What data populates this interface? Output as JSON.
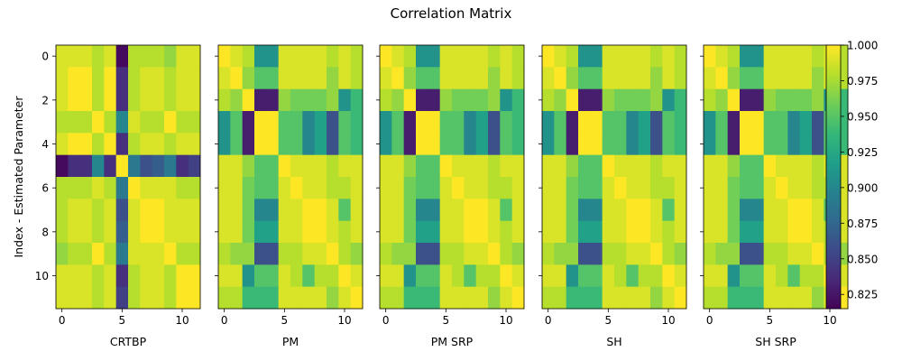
{
  "title": "Correlation Matrix",
  "ylabel": "Index - Estimated Parameter",
  "colorbar": {
    "min": 0.815,
    "max": 1.0,
    "ticks": [
      "0.825",
      "0.850",
      "0.875",
      "0.900",
      "0.925",
      "0.950",
      "0.975",
      "1.000"
    ],
    "colormap": "viridis"
  },
  "chart_data": {
    "type": "heatmap",
    "title": "Correlation Matrix",
    "ylabel": "Index - Estimated Parameter",
    "x_ticks": [
      "0",
      "5",
      "10"
    ],
    "y_ticks": [
      "0",
      "2",
      "4",
      "6",
      "8",
      "10"
    ],
    "grid": false,
    "panels": [
      {
        "name": "CRTBP",
        "matrix": [
          [
            0.99,
            0.99,
            0.99,
            0.98,
            0.99,
            0.82,
            0.98,
            0.98,
            0.98,
            0.97,
            0.99,
            0.99
          ],
          [
            0.99,
            1.0,
            1.0,
            0.98,
            1.0,
            0.84,
            0.98,
            0.99,
            0.99,
            0.98,
            0.99,
            0.99
          ],
          [
            0.99,
            1.0,
            1.0,
            0.98,
            1.0,
            0.84,
            0.98,
            0.99,
            0.99,
            0.98,
            0.99,
            0.99
          ],
          [
            0.98,
            0.98,
            0.98,
            1.0,
            0.98,
            0.9,
            0.99,
            0.98,
            0.98,
            1.0,
            0.98,
            0.98
          ],
          [
            0.99,
            1.0,
            1.0,
            0.98,
            1.0,
            0.84,
            0.98,
            0.99,
            0.99,
            0.98,
            0.99,
            0.99
          ],
          [
            0.82,
            0.84,
            0.84,
            0.9,
            0.84,
            1.0,
            0.89,
            0.86,
            0.87,
            0.89,
            0.84,
            0.85
          ],
          [
            0.98,
            0.98,
            0.98,
            0.99,
            0.98,
            0.89,
            1.0,
            0.99,
            0.99,
            0.99,
            0.98,
            0.98
          ],
          [
            0.98,
            0.99,
            0.99,
            0.98,
            0.99,
            0.86,
            0.99,
            1.0,
            1.0,
            0.99,
            0.99,
            0.99
          ],
          [
            0.98,
            0.99,
            0.99,
            0.98,
            0.99,
            0.87,
            0.99,
            1.0,
            1.0,
            0.99,
            0.99,
            0.99
          ],
          [
            0.97,
            0.98,
            0.98,
            1.0,
            0.98,
            0.89,
            0.99,
            0.99,
            0.99,
            1.0,
            0.98,
            0.98
          ],
          [
            0.99,
            0.99,
            0.99,
            0.98,
            0.99,
            0.84,
            0.98,
            0.99,
            0.99,
            0.98,
            1.0,
            1.0
          ],
          [
            0.99,
            0.99,
            0.99,
            0.98,
            0.99,
            0.85,
            0.98,
            0.99,
            0.99,
            0.98,
            1.0,
            1.0
          ]
        ]
      },
      {
        "name": "PM",
        "matrix": [
          [
            1.0,
            0.99,
            0.98,
            0.91,
            0.91,
            0.99,
            0.99,
            0.99,
            0.99,
            0.98,
            0.99,
            0.98
          ],
          [
            0.99,
            1.0,
            0.97,
            0.95,
            0.95,
            0.99,
            0.99,
            0.99,
            0.99,
            0.97,
            0.99,
            0.98
          ],
          [
            0.98,
            0.97,
            1.0,
            0.83,
            0.83,
            0.97,
            0.96,
            0.96,
            0.96,
            0.97,
            0.91,
            0.94
          ],
          [
            0.91,
            0.95,
            0.83,
            1.0,
            1.0,
            0.95,
            0.95,
            0.9,
            0.92,
            0.86,
            0.95,
            0.94
          ],
          [
            0.91,
            0.95,
            0.83,
            1.0,
            1.0,
            0.95,
            0.95,
            0.9,
            0.92,
            0.86,
            0.95,
            0.94
          ],
          [
            0.99,
            0.99,
            0.97,
            0.95,
            0.95,
            1.0,
            0.99,
            0.99,
            0.99,
            0.98,
            0.99,
            0.99
          ],
          [
            0.99,
            0.99,
            0.96,
            0.95,
            0.95,
            0.99,
            1.0,
            0.99,
            0.99,
            0.98,
            0.98,
            0.99
          ],
          [
            0.99,
            0.99,
            0.96,
            0.9,
            0.9,
            0.99,
            0.99,
            1.0,
            1.0,
            0.99,
            0.95,
            0.99
          ],
          [
            0.99,
            0.99,
            0.96,
            0.92,
            0.92,
            0.99,
            0.99,
            1.0,
            1.0,
            0.99,
            0.98,
            0.99
          ],
          [
            0.98,
            0.97,
            0.97,
            0.86,
            0.86,
            0.98,
            0.98,
            0.99,
            0.99,
            1.0,
            0.98,
            0.97
          ],
          [
            0.99,
            0.99,
            0.91,
            0.95,
            0.95,
            0.99,
            0.98,
            0.95,
            0.98,
            0.98,
            1.0,
            0.99
          ],
          [
            0.98,
            0.98,
            0.94,
            0.94,
            0.94,
            0.99,
            0.99,
            0.99,
            0.99,
            0.97,
            0.99,
            1.0
          ]
        ]
      },
      {
        "name": "PM SRP",
        "matrix": [
          [
            1.0,
            0.99,
            0.98,
            0.91,
            0.91,
            0.99,
            0.99,
            0.99,
            0.99,
            0.98,
            0.99,
            0.98
          ],
          [
            0.99,
            1.0,
            0.97,
            0.95,
            0.95,
            0.99,
            0.99,
            0.99,
            0.99,
            0.97,
            0.99,
            0.98
          ],
          [
            0.98,
            0.97,
            1.0,
            0.83,
            0.83,
            0.97,
            0.96,
            0.96,
            0.96,
            0.97,
            0.91,
            0.94
          ],
          [
            0.91,
            0.95,
            0.83,
            1.0,
            1.0,
            0.95,
            0.95,
            0.9,
            0.92,
            0.86,
            0.95,
            0.94
          ],
          [
            0.91,
            0.95,
            0.83,
            1.0,
            1.0,
            0.95,
            0.95,
            0.9,
            0.92,
            0.86,
            0.95,
            0.94
          ],
          [
            0.99,
            0.99,
            0.97,
            0.95,
            0.95,
            1.0,
            0.99,
            0.99,
            0.99,
            0.98,
            0.99,
            0.99
          ],
          [
            0.99,
            0.99,
            0.96,
            0.95,
            0.95,
            0.99,
            1.0,
            0.99,
            0.99,
            0.98,
            0.98,
            0.99
          ],
          [
            0.99,
            0.99,
            0.96,
            0.9,
            0.9,
            0.99,
            0.99,
            1.0,
            1.0,
            0.99,
            0.95,
            0.99
          ],
          [
            0.99,
            0.99,
            0.96,
            0.92,
            0.92,
            0.99,
            0.99,
            1.0,
            1.0,
            0.99,
            0.98,
            0.99
          ],
          [
            0.98,
            0.97,
            0.97,
            0.86,
            0.86,
            0.98,
            0.98,
            0.99,
            0.99,
            1.0,
            0.98,
            0.97
          ],
          [
            0.99,
            0.99,
            0.91,
            0.95,
            0.95,
            0.99,
            0.98,
            0.95,
            0.98,
            0.98,
            1.0,
            0.99
          ],
          [
            0.98,
            0.98,
            0.94,
            0.94,
            0.94,
            0.99,
            0.99,
            0.99,
            0.99,
            0.97,
            0.99,
            1.0
          ]
        ]
      },
      {
        "name": "SH",
        "matrix": [
          [
            1.0,
            0.99,
            0.98,
            0.91,
            0.91,
            0.99,
            0.99,
            0.99,
            0.99,
            0.98,
            0.99,
            0.98
          ],
          [
            0.99,
            1.0,
            0.97,
            0.95,
            0.95,
            0.99,
            0.99,
            0.99,
            0.99,
            0.97,
            0.99,
            0.98
          ],
          [
            0.98,
            0.97,
            1.0,
            0.83,
            0.83,
            0.97,
            0.96,
            0.96,
            0.96,
            0.97,
            0.91,
            0.94
          ],
          [
            0.91,
            0.95,
            0.83,
            1.0,
            1.0,
            0.95,
            0.95,
            0.9,
            0.92,
            0.86,
            0.95,
            0.94
          ],
          [
            0.91,
            0.95,
            0.83,
            1.0,
            1.0,
            0.95,
            0.95,
            0.9,
            0.92,
            0.86,
            0.95,
            0.94
          ],
          [
            0.99,
            0.99,
            0.97,
            0.95,
            0.95,
            1.0,
            0.99,
            0.99,
            0.99,
            0.98,
            0.99,
            0.99
          ],
          [
            0.99,
            0.99,
            0.96,
            0.95,
            0.95,
            0.99,
            1.0,
            0.99,
            0.99,
            0.98,
            0.98,
            0.99
          ],
          [
            0.99,
            0.99,
            0.96,
            0.9,
            0.9,
            0.99,
            0.99,
            1.0,
            1.0,
            0.99,
            0.95,
            0.99
          ],
          [
            0.99,
            0.99,
            0.96,
            0.92,
            0.92,
            0.99,
            0.99,
            1.0,
            1.0,
            0.99,
            0.98,
            0.99
          ],
          [
            0.98,
            0.97,
            0.97,
            0.86,
            0.86,
            0.98,
            0.98,
            0.99,
            0.99,
            1.0,
            0.98,
            0.97
          ],
          [
            0.99,
            0.99,
            0.91,
            0.95,
            0.95,
            0.99,
            0.98,
            0.95,
            0.98,
            0.98,
            1.0,
            0.99
          ],
          [
            0.98,
            0.98,
            0.94,
            0.94,
            0.94,
            0.99,
            0.99,
            0.99,
            0.99,
            0.97,
            0.99,
            1.0
          ]
        ]
      },
      {
        "name": "SH SRP",
        "matrix": [
          [
            1.0,
            0.99,
            0.98,
            0.91,
            0.91,
            0.99,
            0.99,
            0.99,
            0.99,
            0.98,
            0.99,
            0.98
          ],
          [
            0.99,
            1.0,
            0.97,
            0.95,
            0.95,
            0.99,
            0.99,
            0.99,
            0.99,
            0.97,
            0.99,
            0.98
          ],
          [
            0.98,
            0.97,
            1.0,
            0.83,
            0.83,
            0.97,
            0.96,
            0.96,
            0.96,
            0.97,
            0.91,
            0.94
          ],
          [
            0.91,
            0.95,
            0.83,
            1.0,
            1.0,
            0.95,
            0.95,
            0.9,
            0.92,
            0.86,
            0.95,
            0.94
          ],
          [
            0.91,
            0.95,
            0.83,
            1.0,
            1.0,
            0.95,
            0.95,
            0.9,
            0.92,
            0.86,
            0.95,
            0.94
          ],
          [
            0.99,
            0.99,
            0.97,
            0.95,
            0.95,
            1.0,
            0.99,
            0.99,
            0.99,
            0.98,
            0.99,
            0.99
          ],
          [
            0.99,
            0.99,
            0.96,
            0.95,
            0.95,
            0.99,
            1.0,
            0.99,
            0.99,
            0.98,
            0.98,
            0.99
          ],
          [
            0.99,
            0.99,
            0.96,
            0.9,
            0.9,
            0.99,
            0.99,
            1.0,
            1.0,
            0.99,
            0.95,
            0.99
          ],
          [
            0.99,
            0.99,
            0.96,
            0.92,
            0.92,
            0.99,
            0.99,
            1.0,
            1.0,
            0.99,
            0.98,
            0.99
          ],
          [
            0.98,
            0.97,
            0.97,
            0.86,
            0.86,
            0.98,
            0.98,
            0.99,
            0.99,
            1.0,
            0.98,
            0.97
          ],
          [
            0.99,
            0.99,
            0.91,
            0.95,
            0.95,
            0.99,
            0.98,
            0.95,
            0.98,
            0.98,
            1.0,
            0.99
          ],
          [
            0.98,
            0.98,
            0.94,
            0.94,
            0.94,
            0.99,
            0.99,
            0.99,
            0.99,
            0.97,
            0.99,
            1.0
          ]
        ]
      }
    ]
  }
}
